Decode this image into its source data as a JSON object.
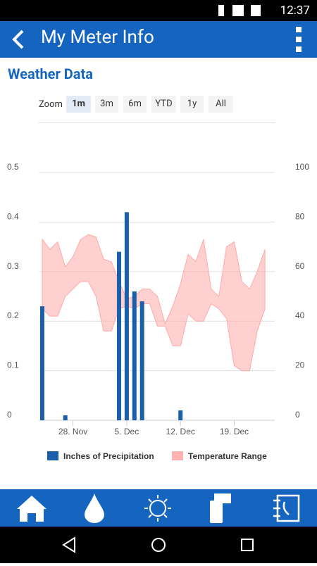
{
  "status_bar": {
    "time": "12:37"
  },
  "header": {
    "title": "My Meter Info"
  },
  "section_title": "Weather Data",
  "zoom": {
    "label": "Zoom",
    "options": [
      "1m",
      "3m",
      "6m",
      "YTD",
      "1y",
      "All"
    ],
    "selected": "1m"
  },
  "chart_data": {
    "type": "bar",
    "categories": [
      null,
      null,
      null,
      null,
      "28. Nov",
      null,
      null,
      null,
      null,
      null,
      null,
      "5. Dec",
      null,
      null,
      null,
      null,
      null,
      null,
      "12. Dec",
      null,
      null,
      null,
      null,
      null,
      null,
      "19. Dec",
      null,
      null,
      null,
      null,
      null
    ],
    "series": [
      {
        "name": "Inches of Precipitation",
        "color": "#1a5fa8",
        "values": [
          0.23,
          0,
          0,
          0.01,
          0,
          0,
          0,
          0,
          0,
          0,
          0.34,
          0.42,
          0.26,
          0.24,
          0,
          0,
          0,
          0,
          0.02,
          0,
          0,
          0,
          0,
          0,
          0,
          0,
          0,
          0,
          0,
          0,
          0
        ]
      },
      {
        "name": "Temperature Range",
        "type": "arearange",
        "axis": "y2",
        "color": "#ffaaaa",
        "high": [
          73,
          69,
          72,
          62,
          66,
          73,
          75,
          74,
          65,
          64,
          56,
          49,
          50,
          53,
          53,
          50,
          39,
          46,
          55,
          67,
          64,
          73,
          53,
          50,
          70,
          72,
          56,
          53,
          60,
          69,
          null
        ],
        "low": [
          45,
          42,
          42,
          50,
          53,
          56,
          56,
          50,
          36,
          36,
          45,
          46,
          45,
          47,
          47,
          38,
          38,
          30,
          30,
          43,
          40,
          40,
          47,
          45,
          41,
          22,
          20,
          20,
          36,
          45,
          null
        ]
      }
    ],
    "ylim": [
      0,
      0.5
    ],
    "yticks": [
      0,
      0.1,
      0.2,
      0.3,
      0.4,
      0.5
    ],
    "y2lim": [
      0,
      100
    ],
    "y2ticks": [
      0,
      20,
      40,
      60,
      80,
      100
    ],
    "grid": true,
    "legend": "bottom"
  }
}
